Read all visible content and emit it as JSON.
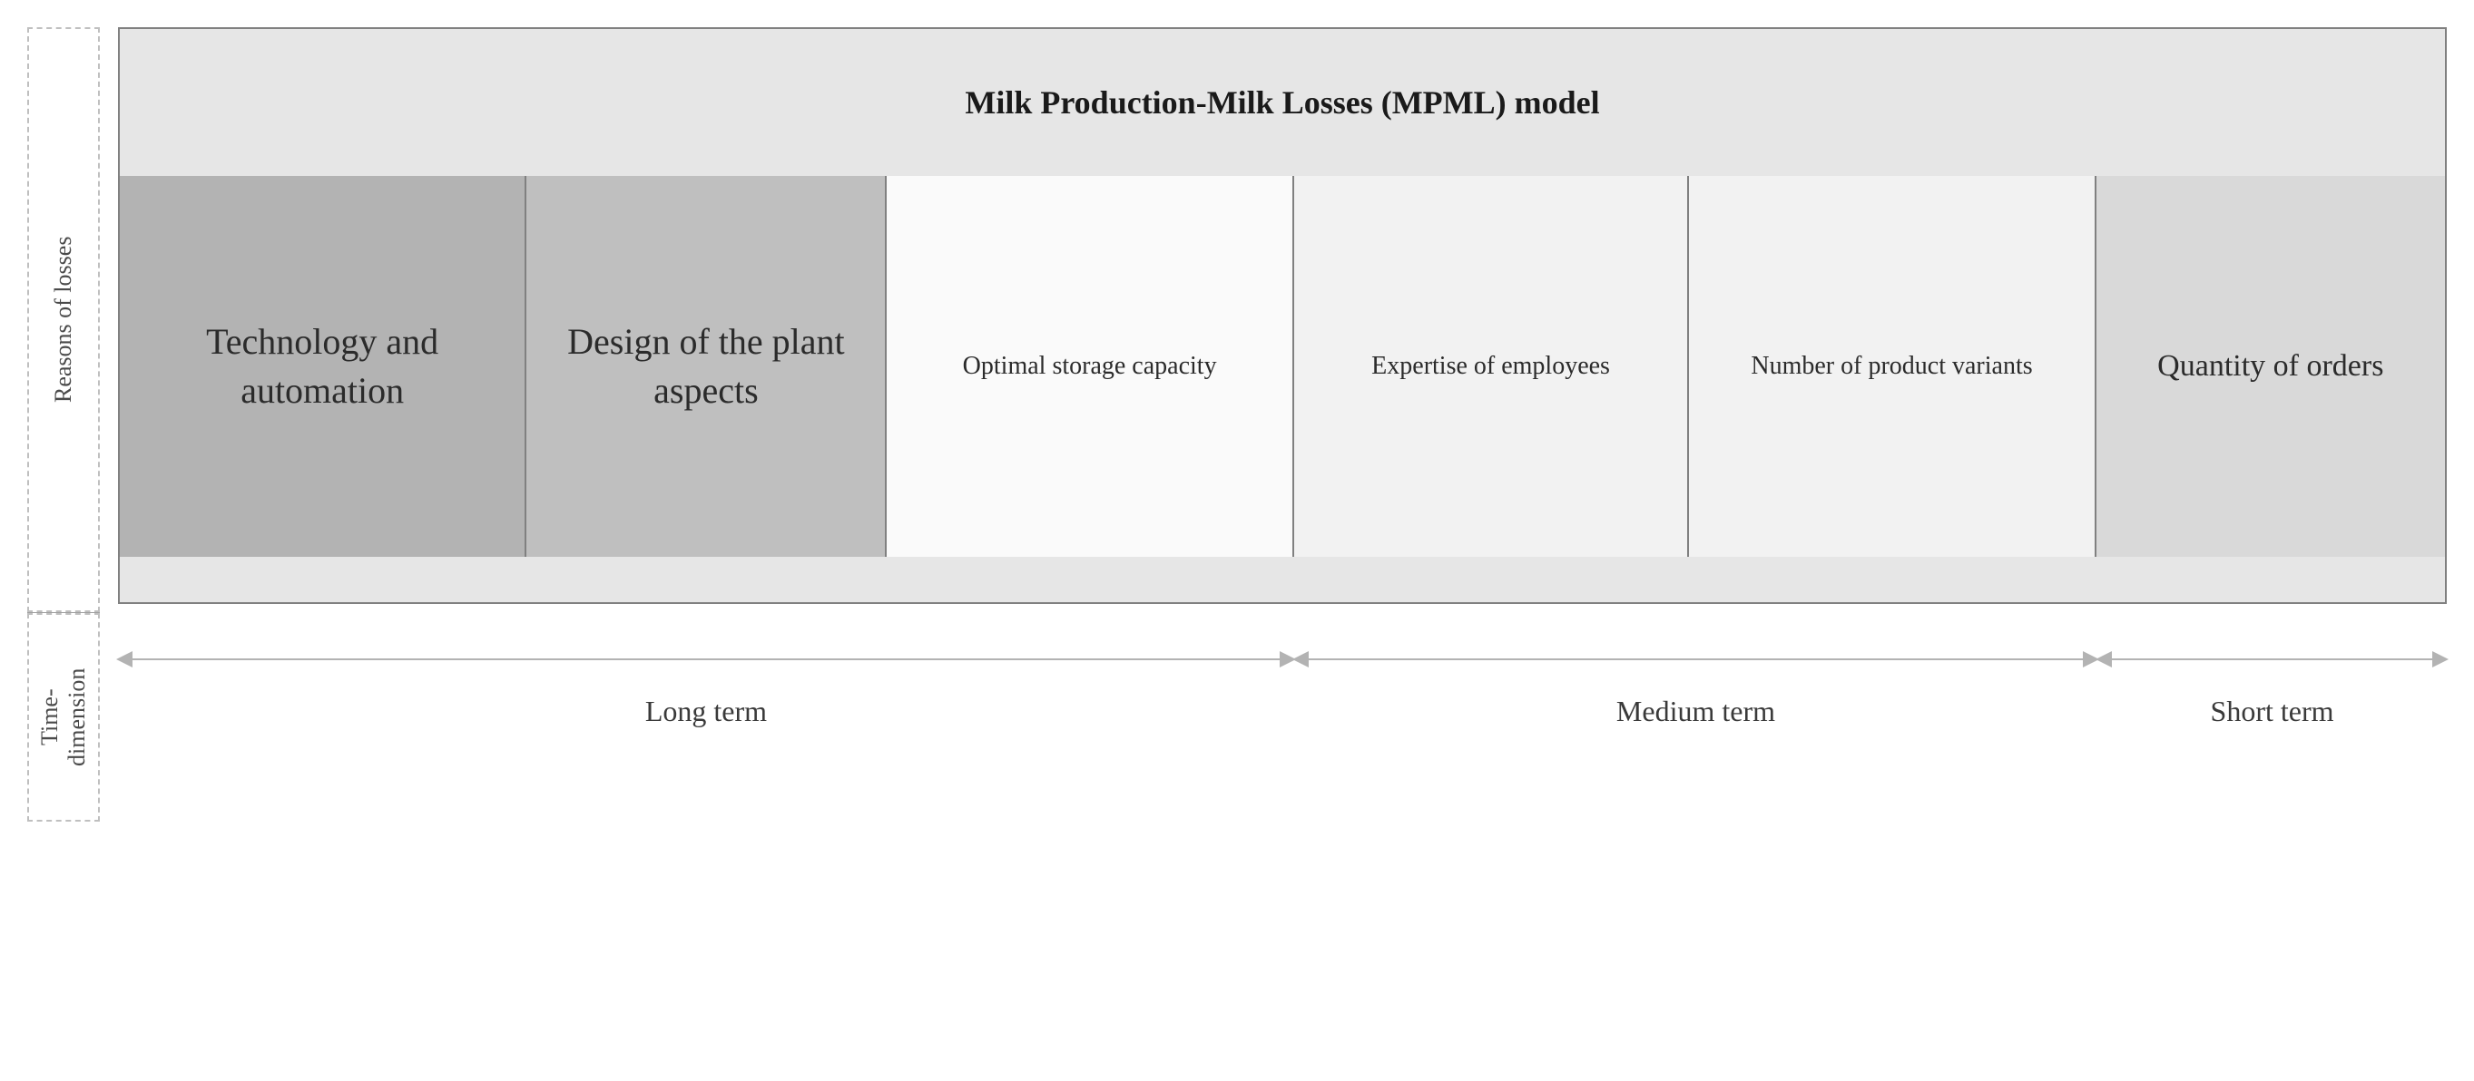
{
  "title": "Milk Production-Milk Losses (MPML) model",
  "side_labels": {
    "reasons": "Reasons of losses",
    "time": "Time-\ndimension"
  },
  "colors": {
    "header_bg": "#e6e6e6",
    "border": "#808080",
    "dashed_border": "#bfbfbf",
    "arrow": "#b3b3b3",
    "text_dark": "#1a1a1a",
    "text_mid": "#3a3a3a"
  },
  "factors": [
    {
      "label": "Technology and automation",
      "bg": "#b3b3b3",
      "width_pct": 17.5,
      "font_size": 40
    },
    {
      "label": "Design of the plant aspects",
      "bg": "#bfbfbf",
      "width_pct": 15.5,
      "font_size": 40
    },
    {
      "label": "Optimal storage capacity",
      "bg": "#fafafa",
      "width_pct": 17.5,
      "font_size": 28
    },
    {
      "label": "Expertise of employees",
      "bg": "#f2f2f2",
      "width_pct": 17.0,
      "font_size": 28
    },
    {
      "label": "Number of product variants",
      "bg": "#f2f2f2",
      "width_pct": 17.5,
      "font_size": 28
    },
    {
      "label": "Quantity of orders",
      "bg": "#d9d9d9",
      "width_pct": 15.0,
      "font_size": 34
    }
  ],
  "time_segments": [
    {
      "label": "Long term",
      "start_pct": 0,
      "end_pct": 50.5
    },
    {
      "label": "Medium term",
      "start_pct": 50.5,
      "end_pct": 85.0
    },
    {
      "label": "Short term",
      "start_pct": 85.0,
      "end_pct": 100
    }
  ],
  "typography": {
    "title_fontsize": 36,
    "title_weight": "bold",
    "side_label_fontsize": 26,
    "time_label_fontsize": 32
  }
}
